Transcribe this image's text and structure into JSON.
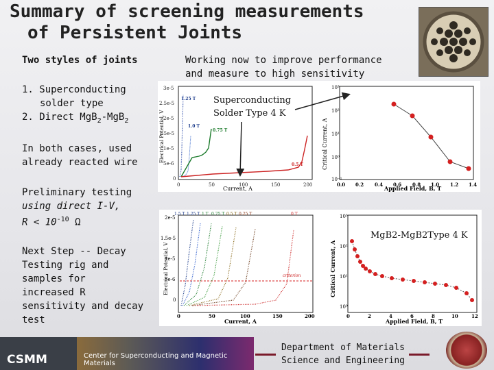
{
  "title": {
    "line1": "Summary of screening measurements",
    "line2": "of Persistent Joints"
  },
  "left": {
    "heading": "Two styles of joints",
    "list": [
      "1. Superconducting",
      "solder type",
      "2. Direct MgB",
      "-MgB"
    ],
    "list_sub": "2",
    "reacted": [
      "In both cases, used",
      "already reacted wire"
    ],
    "prelim": [
      "Preliminary testing",
      "using direct I-V,",
      "R < 10",
      "-10",
      " Ω"
    ],
    "next": [
      "Next Step -- Decay",
      "Testing rig and",
      "samples for",
      "increased R",
      "sensitivity and decay",
      "test"
    ]
  },
  "right_heading": [
    "Working now to improve performance",
    "and measure to high sensitivity"
  ],
  "top_plot": {
    "annotation": [
      "Superconducting",
      "Solder Type 4 K"
    ],
    "left_ylabel": "Electrical Potential, V",
    "left_xlabel": "Current, A",
    "left_yticks": [
      "3e-5",
      "2.5e-5",
      "2e-5",
      "1.5e-5",
      "1e-5",
      "5e-6",
      "0"
    ],
    "left_xticks": [
      "0",
      "50",
      "100",
      "150",
      "200"
    ],
    "field_labels": [
      "1.25 T",
      "1.0 T",
      "0.75 T",
      "0.5 T"
    ],
    "right_ylabel": "Critical Current, A",
    "right_xlabel": "Applied Field, B, T",
    "right_yticks": [
      "10³",
      "10²",
      "10¹",
      "10⁰",
      "10⁻¹"
    ],
    "right_xticks": [
      "0.0",
      "0.2",
      "0.4",
      "0.6",
      "0.8",
      "1.0",
      "1.2",
      "1.4"
    ]
  },
  "bottom_plot": {
    "annotation": "MgB2-MgB2Type 4 K",
    "left_ylabel": "Electrical Potential, V",
    "left_xlabel": "Current, A",
    "left_yticks": [
      "2e-5",
      "1.5e-5",
      "1e-5",
      "5e-6",
      "0"
    ],
    "left_xticks": [
      "0",
      "50",
      "100",
      "150",
      "200"
    ],
    "field_labels": [
      "1.5 T",
      "1.25 T",
      "1 T",
      "0.75 T",
      "0.5 T",
      "0.25 T",
      "0 T"
    ],
    "criterion": "criterion",
    "right_ylabel": "Critical Current, A",
    "right_xlabel": "Applied Field, B, T",
    "right_yticks": [
      "10³",
      "10²",
      "10¹",
      "10⁰"
    ],
    "right_xticks": [
      "0",
      "2",
      "4",
      "6",
      "8",
      "10",
      "12"
    ]
  },
  "footer": {
    "logo": "CSMM",
    "center_name": "Center for Superconducting and Magnetic Materials",
    "dept": [
      "Department of Materials",
      "Science and Engineering"
    ]
  },
  "colors": {
    "accent_red": "#d42020",
    "curve_green": "#1a7a2a",
    "dash": "#7a1a2a"
  }
}
